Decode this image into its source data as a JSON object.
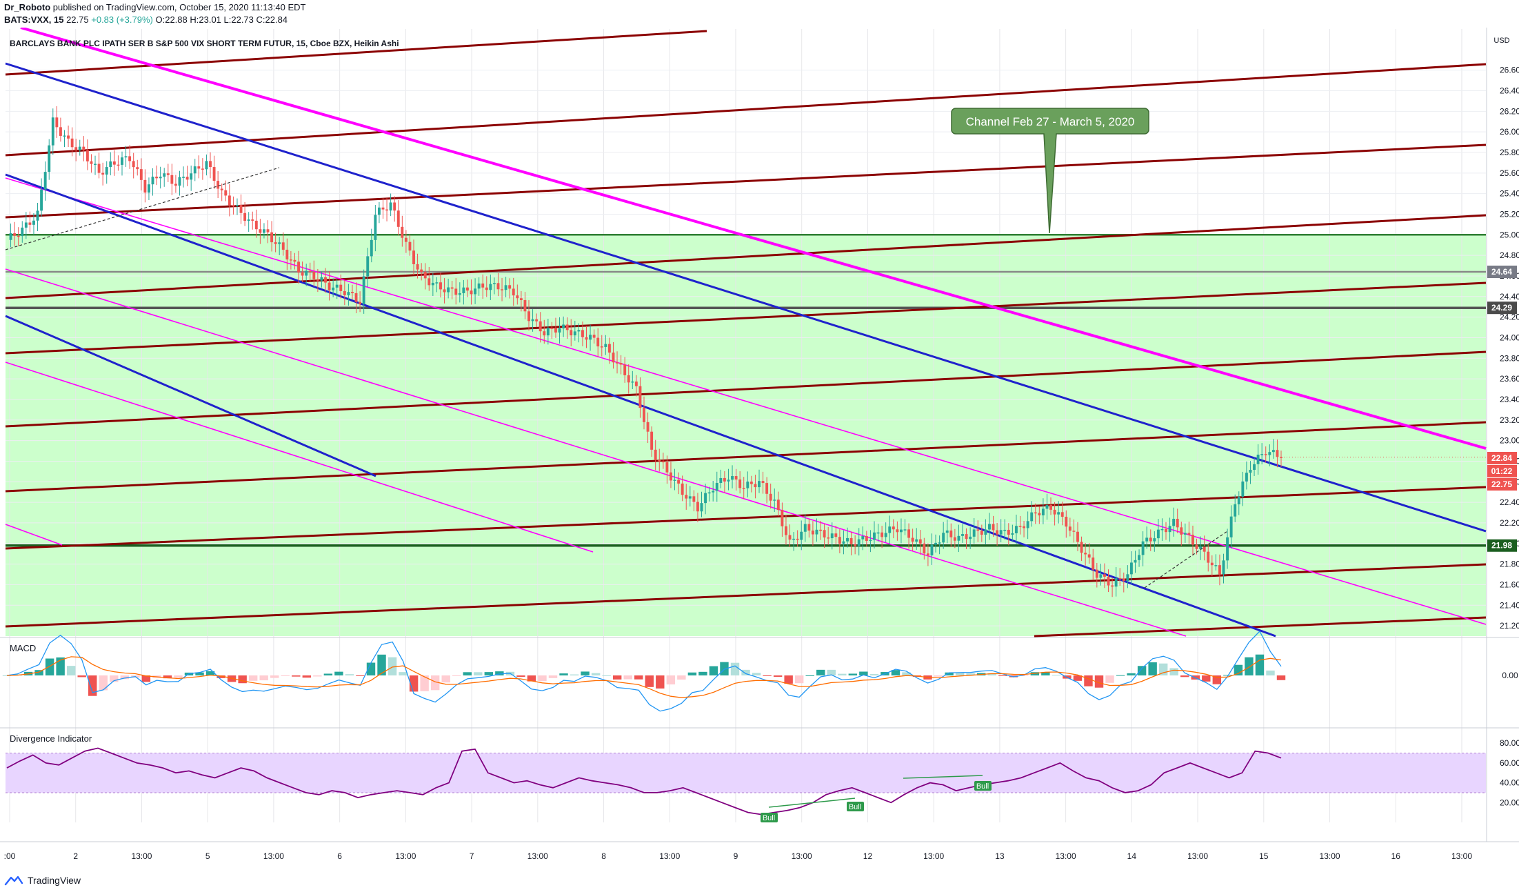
{
  "header": {
    "publisher": "Dr_Roboto",
    "published_text": "published on TradingView.com, October 15, 2020 11:13:40 EDT",
    "symbol_line": "BATS:VXX, 15",
    "last": "22.75",
    "change": "+0.83 (+3.79%)",
    "ohlc": "O:22.88 H:23.01 L:22.73 C:22.84"
  },
  "footer": {
    "brand": "TradingView",
    "logo_icon": "tradingview-logo-icon"
  },
  "colors": {
    "channel_red": "#8b0000",
    "channel_blue": "#1f22cc",
    "magenta": "#ff00ff",
    "zone_fill": "#ccffcc",
    "level_green": "#1b5e20",
    "candle_up": "#26a69a",
    "candle_down": "#ef5350",
    "macd_line": "#2196f3",
    "signal_line": "#ff6d00",
    "divergence_line": "#800080",
    "divergence_band": "#e8d5ff"
  },
  "chart_data": [
    {
      "type": "candlestick",
      "title": "BARCLAYS BANK PLC IPATH SER B S&P 500 VIX SHORT TERM FUTUR, 15, Cboe BZX, Heikin Ashi",
      "currency": "USD",
      "ylim": [
        21.1,
        27.0
      ],
      "y_ticks": [
        "26.60",
        "26.40",
        "26.20",
        "26.00",
        "25.80",
        "25.60",
        "25.40",
        "25.20",
        "25.00",
        "24.80",
        "24.60",
        "24.40",
        "24.20",
        "24.00",
        "23.80",
        "23.60",
        "23.40",
        "23.20",
        "23.00",
        "22.80",
        "22.60",
        "22.40",
        "22.20",
        "22.00",
        "21.80",
        "21.60",
        "21.40",
        "21.20"
      ],
      "x_ticks": [
        ":00",
        "2",
        "13:00",
        "5",
        "13:00",
        "6",
        "13:00",
        "7",
        "13:00",
        "8",
        "13:00",
        "9",
        "13:00",
        "12",
        "13:00",
        "13",
        "13:00",
        "14",
        "13:00",
        "15",
        "13:00",
        "16",
        "13:00"
      ],
      "price_labels": [
        {
          "text": "24.64",
          "value": 24.64,
          "bg": "#787b86"
        },
        {
          "text": "24.29",
          "value": 24.29,
          "bg": "#4a4a4a"
        },
        {
          "text": "22.84",
          "value": 22.84,
          "bg": "#ef5350"
        },
        {
          "text": "01:22",
          "value": 22.9,
          "bg": "#ef5350"
        },
        {
          "text": "22.75",
          "value": 22.75,
          "bg": "#ef5350"
        },
        {
          "text": "21.98",
          "value": 21.98,
          "bg": "#1b5e20"
        }
      ],
      "horizontal_levels": [
        25.0,
        24.64,
        24.29,
        21.98
      ],
      "support_zone": [
        21.1,
        25.0
      ],
      "annotation": {
        "text": "Channel Feb 27 - March 5, 2020",
        "points_to": 25.0
      },
      "series": [
        {
          "name": "",
          "close_path": [
            [
              0,
              24.95
            ],
            [
              2,
              25.05
            ],
            [
              3,
              25.2
            ],
            [
              4,
              26.1
            ],
            [
              5,
              25.9
            ],
            [
              6,
              25.8
            ],
            [
              7,
              25.6
            ],
            [
              8,
              25.7
            ],
            [
              9,
              25.75
            ],
            [
              10,
              25.45
            ],
            [
              11,
              25.6
            ],
            [
              12,
              25.5
            ],
            [
              13,
              25.6
            ],
            [
              14,
              25.7
            ],
            [
              15,
              25.4
            ],
            [
              16,
              25.25
            ],
            [
              17,
              25.1
            ],
            [
              18,
              25.0
            ],
            [
              19,
              24.85
            ],
            [
              20,
              24.65
            ],
            [
              21,
              24.6
            ],
            [
              22,
              24.5
            ],
            [
              23,
              24.45
            ],
            [
              24,
              24.35
            ],
            [
              25,
              25.2
            ],
            [
              26,
              25.3
            ],
            [
              27,
              24.9
            ],
            [
              28,
              24.6
            ],
            [
              29,
              24.5
            ],
            [
              30,
              24.45
            ],
            [
              31,
              24.45
            ],
            [
              32,
              24.5
            ],
            [
              33,
              24.5
            ],
            [
              34,
              24.45
            ],
            [
              35,
              24.2
            ],
            [
              36,
              24.05
            ],
            [
              37,
              24.1
            ],
            [
              38,
              24.05
            ],
            [
              39,
              24.0
            ],
            [
              40,
              23.9
            ],
            [
              41,
              23.7
            ],
            [
              42,
              23.5
            ],
            [
              43,
              22.9
            ],
            [
              44,
              22.7
            ],
            [
              45,
              22.5
            ],
            [
              46,
              22.35
            ],
            [
              47,
              22.55
            ],
            [
              48,
              22.65
            ],
            [
              49,
              22.55
            ],
            [
              50,
              22.6
            ],
            [
              51,
              22.4
            ],
            [
              52,
              22.0
            ],
            [
              53,
              22.15
            ],
            [
              54,
              22.1
            ],
            [
              55,
              22.05
            ],
            [
              56,
              22.0
            ],
            [
              57,
              22.05
            ],
            [
              58,
              22.1
            ],
            [
              59,
              22.15
            ],
            [
              60,
              22.05
            ],
            [
              61,
              21.9
            ],
            [
              62,
              22.1
            ],
            [
              63,
              22.05
            ],
            [
              64,
              22.1
            ],
            [
              65,
              22.15
            ],
            [
              66,
              22.1
            ],
            [
              67,
              22.15
            ],
            [
              68,
              22.3
            ],
            [
              69,
              22.35
            ],
            [
              70,
              22.2
            ],
            [
              71,
              21.95
            ],
            [
              72,
              21.7
            ],
            [
              73,
              21.6
            ],
            [
              74,
              21.7
            ],
            [
              75,
              22.0
            ],
            [
              76,
              22.1
            ],
            [
              77,
              22.2
            ],
            [
              78,
              22.05
            ],
            [
              79,
              21.9
            ],
            [
              80,
              21.7
            ],
            [
              81,
              22.4
            ],
            [
              82,
              22.75
            ],
            [
              83,
              22.9
            ],
            [
              84,
              22.84
            ]
          ]
        }
      ]
    },
    {
      "type": "bar",
      "title": "MACD",
      "y_ticks": [
        "0.00"
      ],
      "series": [
        {
          "name": "",
          "values": []
        }
      ]
    },
    {
      "type": "line",
      "title": "Divergence Indicator",
      "ylim": [
        0,
        85
      ],
      "y_ticks": [
        "80.00",
        "60.00",
        "40.00",
        "20.00"
      ],
      "band": [
        30,
        70
      ],
      "markers": [
        "Bull",
        "Bull",
        "Bull"
      ],
      "series": [
        {
          "name": "",
          "values": [
            55,
            62,
            68,
            60,
            58,
            65,
            72,
            75,
            70,
            65,
            60,
            58,
            55,
            50,
            52,
            48,
            45,
            50,
            55,
            52,
            45,
            40,
            35,
            30,
            28,
            32,
            30,
            25,
            28,
            30,
            32,
            30,
            28,
            35,
            40,
            72,
            74,
            50,
            45,
            40,
            42,
            38,
            35,
            40,
            45,
            42,
            40,
            38,
            35,
            30,
            30,
            32,
            35,
            30,
            25,
            20,
            15,
            10,
            8,
            10,
            12,
            15,
            20,
            28,
            32,
            35,
            30,
            25,
            20,
            28,
            35,
            40,
            38,
            32,
            35,
            38,
            40,
            42,
            45,
            50,
            55,
            60,
            52,
            45,
            42,
            35,
            30,
            32,
            38,
            50,
            55,
            60,
            55,
            50,
            45,
            50,
            72,
            70,
            65
          ]
        }
      ]
    }
  ]
}
